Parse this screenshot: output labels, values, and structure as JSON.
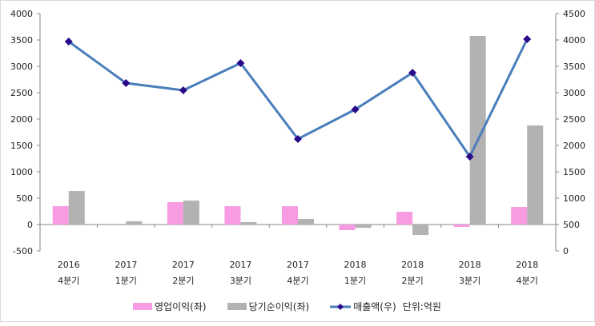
{
  "chart_data": {
    "type": "bar+line",
    "categories": [
      [
        "2016",
        "4분기"
      ],
      [
        "2017",
        "1분기"
      ],
      [
        "2017",
        "2분기"
      ],
      [
        "2017",
        "3분기"
      ],
      [
        "2017",
        "4분기"
      ],
      [
        "2018",
        "1분기"
      ],
      [
        "2018",
        "2분기"
      ],
      [
        "2018",
        "3분기"
      ],
      [
        "2018",
        "4분기"
      ]
    ],
    "left_axis": {
      "min": -500,
      "max": 4000,
      "step": 500,
      "ticks": [
        "-500",
        "0",
        "500",
        "1000",
        "1500",
        "2000",
        "2500",
        "3000",
        "3500",
        "4000"
      ]
    },
    "right_axis": {
      "min": 0,
      "max": 4500,
      "step": 500,
      "ticks": [
        "0",
        "500",
        "1000",
        "1500",
        "2000",
        "2500",
        "3000",
        "3500",
        "4000",
        "4500"
      ]
    },
    "series": [
      {
        "name": "영업이익(좌)",
        "type": "bar",
        "axis": "left",
        "color": "#f79ce2",
        "values": [
          348,
          0,
          424,
          348,
          348,
          -106,
          242,
          -45,
          333
        ]
      },
      {
        "name": "당기순이익(좌)",
        "type": "bar",
        "axis": "left",
        "color": "#b2b2b2",
        "values": [
          636,
          61,
          455,
          45,
          106,
          -61,
          -197,
          3576,
          1879
        ]
      },
      {
        "name": "매출액(우)",
        "type": "line",
        "axis": "right",
        "color": "#4a7ebb",
        "marker_color": "#2a0a8a",
        "values": [
          3970,
          3182,
          3045,
          3561,
          2121,
          2682,
          3379,
          1788,
          4015
        ]
      }
    ],
    "unit_note": "단위:억원",
    "legend_position": "bottom",
    "grid": false
  }
}
